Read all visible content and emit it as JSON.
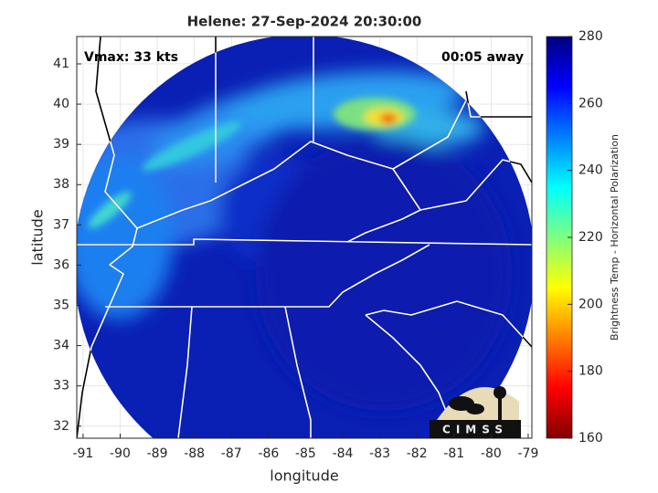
{
  "chart_data": {
    "type": "map",
    "title": "Helene: 27-Sep-2024 20:30:00",
    "annotations": [
      "Vmax: 33 kts",
      "00:05 away"
    ],
    "xlabel": "longitude",
    "ylabel": "latitude",
    "xlim": [
      -91.17,
      -78.9
    ],
    "ylim": [
      31.7,
      41.68
    ],
    "xticks": [
      -91,
      -90,
      -89,
      -88,
      -87,
      -86,
      -85,
      -84,
      -83,
      -82,
      -81,
      -80,
      -79
    ],
    "yticks": [
      32,
      33,
      34,
      35,
      36,
      37,
      38,
      39,
      40,
      41
    ],
    "grid": true,
    "colorbar": {
      "label": "Brightness Temp - Horizontal Polarization",
      "lim": [
        160,
        280
      ],
      "ticks": [
        160,
        180,
        200,
        220,
        240,
        260,
        280
      ],
      "colormap": "jet"
    },
    "logo": "CIMSS"
  }
}
